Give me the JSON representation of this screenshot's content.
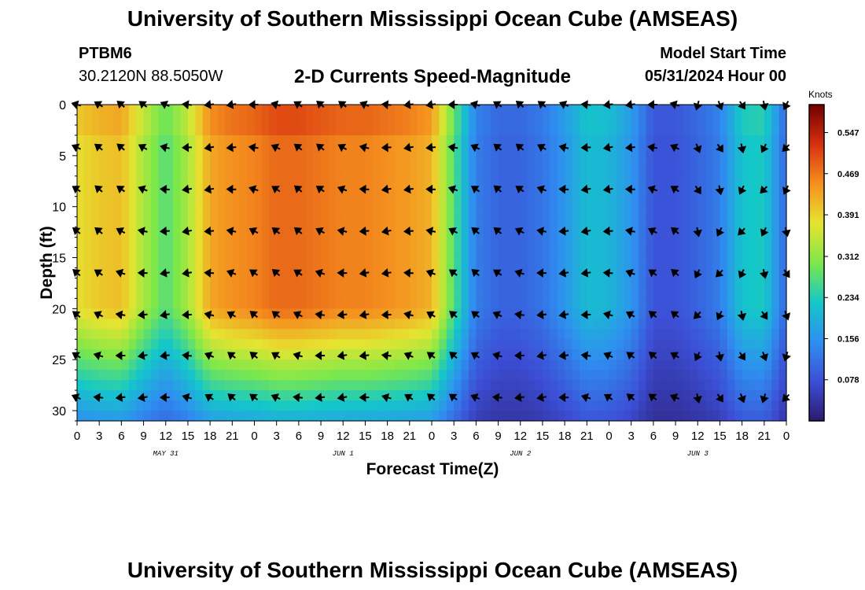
{
  "header": {
    "title": "University of Southern Mississippi Ocean Cube (AMSEAS)",
    "station": "PTBM6",
    "coords": "30.2120N  88.5050W",
    "subtitle": "2-D Currents Speed-Magnitude",
    "model_label": "Model Start Time",
    "model_start": "05/31/2024 Hour 00",
    "footer_title": "University of Southern Mississippi Ocean Cube (AMSEAS)"
  },
  "colors": {
    "c0": "#2b1a6e",
    "c1": "#3c4fd6",
    "c2": "#2f8ff0",
    "c3": "#14c7c9",
    "c4": "#7ee84a",
    "c5": "#e6e430",
    "c6": "#f5901f",
    "c7": "#d7300f",
    "c8": "#700000",
    "arrow": "#000000"
  },
  "chart_data": {
    "type": "heatmap",
    "title": "2-D Currents Speed-Magnitude",
    "xlabel": "Forecast Time(Z)",
    "ylabel": "Depth (ft)",
    "x_range_hours": [
      0,
      96
    ],
    "y_range_ft": [
      0,
      31
    ],
    "x_tick_labels": [
      "0",
      "3",
      "6",
      "9",
      "12",
      "15",
      "18",
      "21",
      "0",
      "3",
      "6",
      "9",
      "12",
      "15",
      "18",
      "21",
      "0",
      "3",
      "6",
      "9",
      "12",
      "15",
      "18",
      "21",
      "0",
      "3",
      "6",
      "9",
      "12",
      "15",
      "18",
      "21",
      "0"
    ],
    "y_ticks": [
      0,
      5,
      10,
      15,
      20,
      25,
      30
    ],
    "date_labels": [
      {
        "label": "MAY 31",
        "hour": 12
      },
      {
        "label": "JUN 1",
        "hour": 36
      },
      {
        "label": "JUN 2",
        "hour": 60
      },
      {
        "label": "JUN 3",
        "hour": 84
      }
    ],
    "colorbar": {
      "unit": "Knots",
      "ticks": [
        "0.547",
        "0.469",
        "0.391",
        "0.312",
        "0.234",
        "0.156",
        "0.078"
      ],
      "tick_values": [
        0.547,
        0.469,
        0.391,
        0.312,
        0.234,
        0.156,
        0.078
      ],
      "range": [
        0,
        0.6
      ]
    },
    "arrow_depths_ft": [
      0,
      4.2,
      8.3,
      12.4,
      16.5,
      20.6,
      24.6,
      28.7
    ],
    "arrow_hours": [
      0,
      3,
      6,
      9,
      12,
      15,
      18,
      21,
      24,
      27,
      30,
      33,
      36,
      39,
      42,
      45,
      48,
      51,
      54,
      57,
      60,
      63,
      66,
      69,
      72,
      75,
      78,
      81,
      84,
      87,
      90,
      93,
      96
    ],
    "speed_by_hour": [
      0.38,
      0.4,
      0.41,
      0.33,
      0.27,
      0.33,
      0.43,
      0.45,
      0.46,
      0.48,
      0.48,
      0.47,
      0.46,
      0.46,
      0.45,
      0.44,
      0.42,
      0.27,
      0.13,
      0.1,
      0.1,
      0.12,
      0.16,
      0.21,
      0.2,
      0.16,
      0.08,
      0.08,
      0.1,
      0.13,
      0.22,
      0.23,
      0.1
    ],
    "speed_hours": [
      0,
      3,
      6,
      9,
      12,
      15,
      18,
      21,
      24,
      27,
      30,
      33,
      36,
      39,
      42,
      45,
      48,
      51,
      54,
      57,
      60,
      63,
      66,
      69,
      72,
      75,
      78,
      81,
      84,
      87,
      90,
      93,
      96
    ]
  }
}
